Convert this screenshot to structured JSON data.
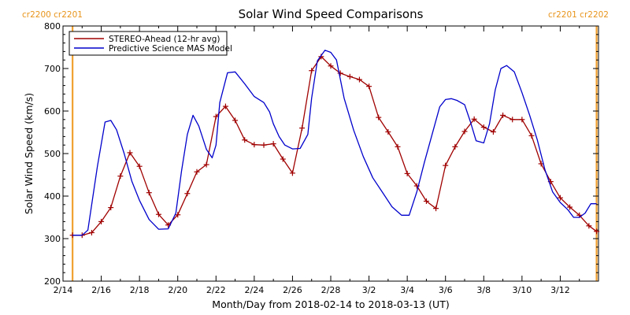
{
  "chart_data": {
    "type": "line",
    "title": "Solar Wind Speed Comparisons",
    "xlabel": "Month/Day from 2018-02-14 to 2018-03-13 (UT)",
    "ylabel": "Solar Wind Speed (km/s)",
    "xlim": [
      0,
      28
    ],
    "ylim": [
      200,
      800
    ],
    "y_ticks": [
      200,
      300,
      400,
      500,
      600,
      700,
      800
    ],
    "x_ticks": [
      {
        "day": 0,
        "label": "2/14"
      },
      {
        "day": 2,
        "label": "2/16"
      },
      {
        "day": 4,
        "label": "2/18"
      },
      {
        "day": 6,
        "label": "2/20"
      },
      {
        "day": 8,
        "label": "2/22"
      },
      {
        "day": 10,
        "label": "2/24"
      },
      {
        "day": 12,
        "label": "2/26"
      },
      {
        "day": 14,
        "label": "2/28"
      },
      {
        "day": 16,
        "label": "3/2"
      },
      {
        "day": 18,
        "label": "3/4"
      },
      {
        "day": 20,
        "label": "3/6"
      },
      {
        "day": 22,
        "label": "3/8"
      },
      {
        "day": 24,
        "label": "3/10"
      },
      {
        "day": 26,
        "label": "3/12"
      }
    ],
    "legend_position": "top-left",
    "carrington_markers": [
      {
        "day": 0.5,
        "labels": [
          "cr2200",
          "cr2201"
        ],
        "side": "left"
      },
      {
        "day": 27.9,
        "labels": [
          "cr2201",
          "cr2202"
        ],
        "side": "right"
      }
    ],
    "series": [
      {
        "name": "STEREO-Ahead (12-hr avg)",
        "color": "#a00000",
        "marker": "plus",
        "x": [
          0.5,
          1.0,
          1.5,
          2.0,
          2.5,
          3.0,
          3.5,
          4.0,
          4.5,
          5.0,
          5.5,
          6.0,
          6.5,
          7.0,
          7.5,
          8.0,
          8.5,
          9.0,
          9.5,
          10.0,
          10.5,
          11.0,
          11.5,
          12.0,
          12.5,
          13.0,
          13.5,
          14.0,
          14.5,
          15.0,
          15.5,
          16.0,
          16.5,
          17.0,
          17.5,
          18.0,
          18.5,
          19.0,
          19.5,
          20.0,
          20.5,
          21.0,
          21.5,
          22.0,
          22.5,
          23.0,
          23.5,
          24.0,
          24.5,
          25.0,
          25.5,
          26.0,
          26.5,
          27.0,
          27.5,
          27.9
        ],
        "y": [
          308,
          308,
          314,
          340,
          373,
          447,
          502,
          470,
          408,
          357,
          332,
          356,
          406,
          457,
          474,
          587,
          611,
          578,
          532,
          521,
          520,
          523,
          487,
          454,
          560,
          695,
          728,
          706,
          689,
          681,
          674,
          658,
          585,
          551,
          516,
          453,
          424,
          388,
          371,
          472,
          516,
          552,
          581,
          562,
          551,
          590,
          580,
          580,
          542,
          476,
          434,
          396,
          374,
          355,
          330,
          317
        ]
      },
      {
        "name": "Predictive Science MAS Model",
        "color": "#0000cc",
        "x": [
          0.5,
          1.0,
          1.3,
          1.8,
          2.2,
          2.5,
          2.8,
          3.2,
          3.6,
          4.0,
          4.5,
          5.0,
          5.5,
          5.9,
          6.2,
          6.5,
          6.8,
          7.1,
          7.5,
          7.8,
          8.0,
          8.2,
          8.6,
          9.0,
          9.5,
          10.0,
          10.5,
          10.8,
          11.0,
          11.3,
          11.6,
          12.0,
          12.4,
          12.8,
          13.0,
          13.3,
          13.7,
          14.0,
          14.3,
          14.7,
          15.2,
          15.7,
          16.2,
          16.7,
          17.2,
          17.7,
          18.1,
          18.5,
          18.9,
          19.3,
          19.7,
          20.0,
          20.3,
          20.6,
          21.0,
          21.3,
          21.6,
          22.0,
          22.3,
          22.6,
          22.9,
          23.2,
          23.6,
          24.0,
          24.4,
          24.8,
          25.2,
          25.6,
          26.0,
          26.4,
          26.7,
          27.0,
          27.3,
          27.6,
          27.9
        ],
        "y": [
          308,
          308,
          320,
          470,
          574,
          578,
          556,
          500,
          435,
          390,
          345,
          322,
          323,
          360,
          460,
          545,
          590,
          565,
          510,
          490,
          520,
          620,
          690,
          692,
          664,
          634,
          620,
          598,
          570,
          540,
          520,
          511,
          512,
          545,
          630,
          718,
          743,
          738,
          720,
          630,
          555,
          493,
          443,
          409,
          375,
          355,
          355,
          410,
          480,
          545,
          610,
          627,
          629,
          625,
          615,
          575,
          530,
          525,
          570,
          650,
          700,
          707,
          692,
          643,
          590,
          532,
          462,
          410,
          385,
          368,
          350,
          350,
          360,
          382,
          382
        ]
      }
    ]
  }
}
